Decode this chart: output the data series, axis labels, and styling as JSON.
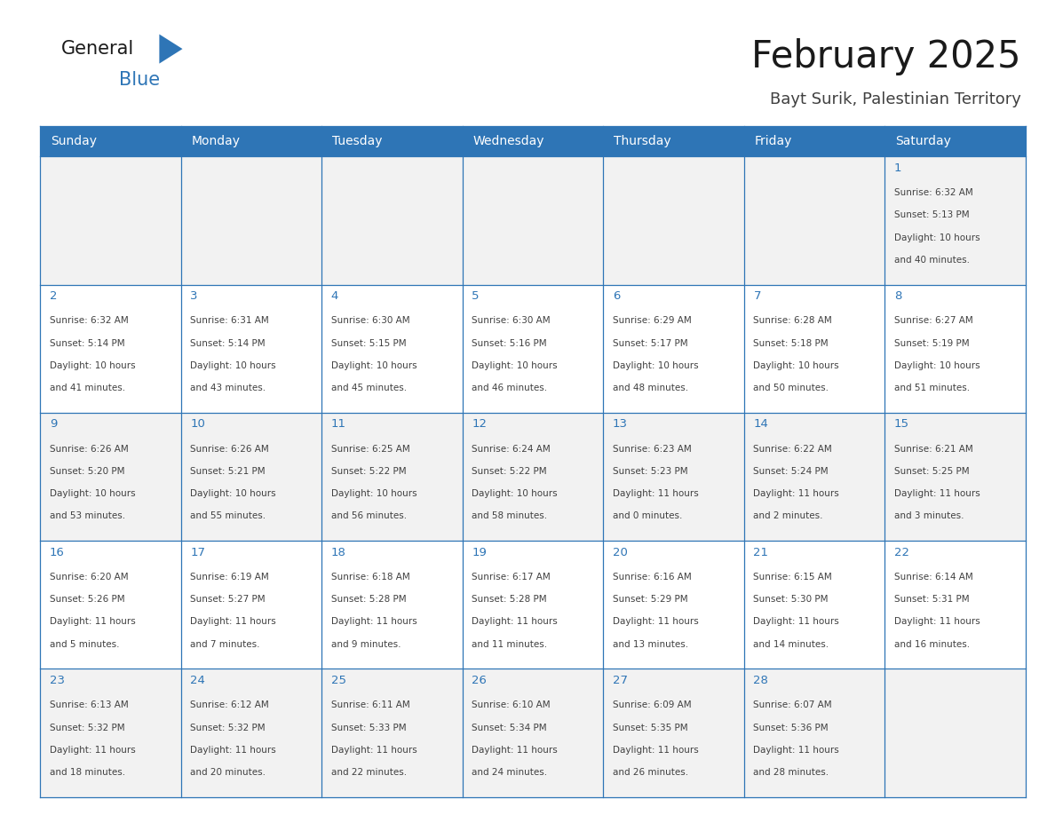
{
  "title": "February 2025",
  "subtitle": "Bayt Surik, Palestinian Territory",
  "days_of_week": [
    "Sunday",
    "Monday",
    "Tuesday",
    "Wednesday",
    "Thursday",
    "Friday",
    "Saturday"
  ],
  "header_bg": "#2e75b6",
  "header_text_color": "#ffffff",
  "cell_bg_odd": "#f2f2f2",
  "cell_bg_even": "#ffffff",
  "border_color": "#2e75b6",
  "day_number_color": "#2e75b6",
  "info_text_color": "#404040",
  "title_color": "#1a1a1a",
  "subtitle_color": "#404040",
  "logo_general_color": "#1a1a1a",
  "logo_blue_color": "#2e75b6",
  "logo_triangle_color": "#2e75b6",
  "calendar_data": [
    [
      null,
      null,
      null,
      null,
      null,
      null,
      {
        "day": 1,
        "lines": [
          "Sunrise: 6:32 AM",
          "Sunset: 5:13 PM",
          "Daylight: 10 hours",
          "and 40 minutes."
        ]
      }
    ],
    [
      {
        "day": 2,
        "lines": [
          "Sunrise: 6:32 AM",
          "Sunset: 5:14 PM",
          "Daylight: 10 hours",
          "and 41 minutes."
        ]
      },
      {
        "day": 3,
        "lines": [
          "Sunrise: 6:31 AM",
          "Sunset: 5:14 PM",
          "Daylight: 10 hours",
          "and 43 minutes."
        ]
      },
      {
        "day": 4,
        "lines": [
          "Sunrise: 6:30 AM",
          "Sunset: 5:15 PM",
          "Daylight: 10 hours",
          "and 45 minutes."
        ]
      },
      {
        "day": 5,
        "lines": [
          "Sunrise: 6:30 AM",
          "Sunset: 5:16 PM",
          "Daylight: 10 hours",
          "and 46 minutes."
        ]
      },
      {
        "day": 6,
        "lines": [
          "Sunrise: 6:29 AM",
          "Sunset: 5:17 PM",
          "Daylight: 10 hours",
          "and 48 minutes."
        ]
      },
      {
        "day": 7,
        "lines": [
          "Sunrise: 6:28 AM",
          "Sunset: 5:18 PM",
          "Daylight: 10 hours",
          "and 50 minutes."
        ]
      },
      {
        "day": 8,
        "lines": [
          "Sunrise: 6:27 AM",
          "Sunset: 5:19 PM",
          "Daylight: 10 hours",
          "and 51 minutes."
        ]
      }
    ],
    [
      {
        "day": 9,
        "lines": [
          "Sunrise: 6:26 AM",
          "Sunset: 5:20 PM",
          "Daylight: 10 hours",
          "and 53 minutes."
        ]
      },
      {
        "day": 10,
        "lines": [
          "Sunrise: 6:26 AM",
          "Sunset: 5:21 PM",
          "Daylight: 10 hours",
          "and 55 minutes."
        ]
      },
      {
        "day": 11,
        "lines": [
          "Sunrise: 6:25 AM",
          "Sunset: 5:22 PM",
          "Daylight: 10 hours",
          "and 56 minutes."
        ]
      },
      {
        "day": 12,
        "lines": [
          "Sunrise: 6:24 AM",
          "Sunset: 5:22 PM",
          "Daylight: 10 hours",
          "and 58 minutes."
        ]
      },
      {
        "day": 13,
        "lines": [
          "Sunrise: 6:23 AM",
          "Sunset: 5:23 PM",
          "Daylight: 11 hours",
          "and 0 minutes."
        ]
      },
      {
        "day": 14,
        "lines": [
          "Sunrise: 6:22 AM",
          "Sunset: 5:24 PM",
          "Daylight: 11 hours",
          "and 2 minutes."
        ]
      },
      {
        "day": 15,
        "lines": [
          "Sunrise: 6:21 AM",
          "Sunset: 5:25 PM",
          "Daylight: 11 hours",
          "and 3 minutes."
        ]
      }
    ],
    [
      {
        "day": 16,
        "lines": [
          "Sunrise: 6:20 AM",
          "Sunset: 5:26 PM",
          "Daylight: 11 hours",
          "and 5 minutes."
        ]
      },
      {
        "day": 17,
        "lines": [
          "Sunrise: 6:19 AM",
          "Sunset: 5:27 PM",
          "Daylight: 11 hours",
          "and 7 minutes."
        ]
      },
      {
        "day": 18,
        "lines": [
          "Sunrise: 6:18 AM",
          "Sunset: 5:28 PM",
          "Daylight: 11 hours",
          "and 9 minutes."
        ]
      },
      {
        "day": 19,
        "lines": [
          "Sunrise: 6:17 AM",
          "Sunset: 5:28 PM",
          "Daylight: 11 hours",
          "and 11 minutes."
        ]
      },
      {
        "day": 20,
        "lines": [
          "Sunrise: 6:16 AM",
          "Sunset: 5:29 PM",
          "Daylight: 11 hours",
          "and 13 minutes."
        ]
      },
      {
        "day": 21,
        "lines": [
          "Sunrise: 6:15 AM",
          "Sunset: 5:30 PM",
          "Daylight: 11 hours",
          "and 14 minutes."
        ]
      },
      {
        "day": 22,
        "lines": [
          "Sunrise: 6:14 AM",
          "Sunset: 5:31 PM",
          "Daylight: 11 hours",
          "and 16 minutes."
        ]
      }
    ],
    [
      {
        "day": 23,
        "lines": [
          "Sunrise: 6:13 AM",
          "Sunset: 5:32 PM",
          "Daylight: 11 hours",
          "and 18 minutes."
        ]
      },
      {
        "day": 24,
        "lines": [
          "Sunrise: 6:12 AM",
          "Sunset: 5:32 PM",
          "Daylight: 11 hours",
          "and 20 minutes."
        ]
      },
      {
        "day": 25,
        "lines": [
          "Sunrise: 6:11 AM",
          "Sunset: 5:33 PM",
          "Daylight: 11 hours",
          "and 22 minutes."
        ]
      },
      {
        "day": 26,
        "lines": [
          "Sunrise: 6:10 AM",
          "Sunset: 5:34 PM",
          "Daylight: 11 hours",
          "and 24 minutes."
        ]
      },
      {
        "day": 27,
        "lines": [
          "Sunrise: 6:09 AM",
          "Sunset: 5:35 PM",
          "Daylight: 11 hours",
          "and 26 minutes."
        ]
      },
      {
        "day": 28,
        "lines": [
          "Sunrise: 6:07 AM",
          "Sunset: 5:36 PM",
          "Daylight: 11 hours",
          "and 28 minutes."
        ]
      },
      null
    ]
  ]
}
